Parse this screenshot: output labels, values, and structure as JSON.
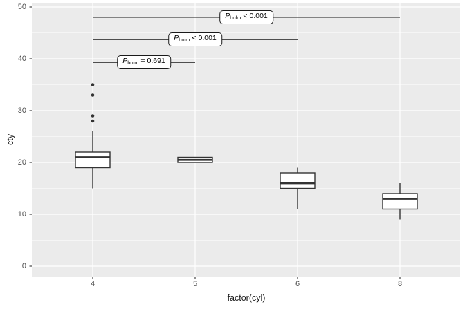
{
  "figure": {
    "panel_bg": "#EBEBEB",
    "grid_color": "#FFFFFF",
    "box_stroke_color": "#333333",
    "box_fill_color": "#FFFFFF",
    "bracket_color": "#1A1A1A",
    "tick_mark_color": "#333333",
    "axis_text_color": "#4D4D4D",
    "axis_title_color": "#1A1A1A"
  },
  "chart_data": {
    "type": "boxplot",
    "title": "",
    "xlabel": "factor(cyl)",
    "ylabel": "cty",
    "categories": [
      "4",
      "5",
      "6",
      "8"
    ],
    "y_ticks": [
      0,
      10,
      20,
      30,
      40,
      50
    ],
    "y_minor_ticks": [
      5,
      15,
      25,
      35,
      45
    ],
    "ylim": [
      -1.9,
      50.5
    ],
    "grid": true,
    "legend": false,
    "series": [
      {
        "category": "4",
        "whisker_low": 15,
        "q1": 19,
        "median": 21,
        "q3": 22,
        "whisker_high": 26,
        "outliers": [
          28,
          29,
          33,
          35
        ]
      },
      {
        "category": "5",
        "whisker_low": 20,
        "q1": 20,
        "median": 20.5,
        "q3": 21,
        "whisker_high": 21,
        "outliers": []
      },
      {
        "category": "6",
        "whisker_low": 11,
        "q1": 15,
        "median": 16,
        "q3": 18,
        "whisker_high": 19,
        "outliers": []
      },
      {
        "category": "8",
        "whisker_low": 9,
        "q1": 11,
        "median": 13,
        "q3": 14,
        "whisker_high": 16,
        "outliers": []
      }
    ],
    "comparisons": [
      {
        "group1": "4",
        "group2": "8",
        "y": 48,
        "p_symbol": "P",
        "p_subscript": "holm",
        "p_value_text": "< 0.001"
      },
      {
        "group1": "4",
        "group2": "6",
        "y": 43.7,
        "p_symbol": "P",
        "p_subscript": "holm",
        "p_value_text": "< 0.001"
      },
      {
        "group1": "4",
        "group2": "5",
        "y": 39.3,
        "p_symbol": "P",
        "p_subscript": "holm",
        "p_value_text": "= 0.691"
      }
    ]
  }
}
